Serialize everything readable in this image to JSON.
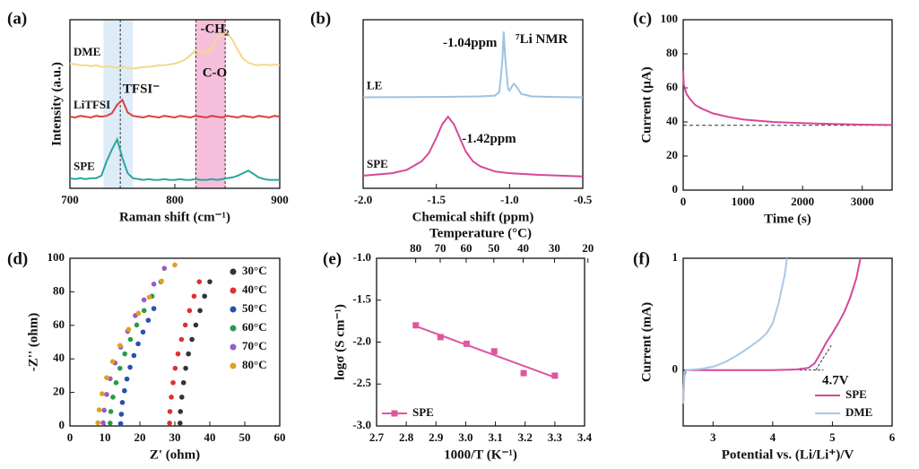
{
  "chart_data": [
    {
      "panel": "(a)",
      "type": "line",
      "xlabel": "Raman shift (cm⁻¹)",
      "ylabel": "Intensity (a.u.)",
      "xlim": [
        700,
        900
      ],
      "ylim": [
        0,
        10
      ],
      "xticks": [
        700,
        800,
        900
      ],
      "yticks": [],
      "legend": "inline",
      "x": [
        700,
        705,
        710,
        715,
        720,
        725,
        730,
        735,
        740,
        745,
        750,
        755,
        760,
        765,
        770,
        775,
        780,
        785,
        790,
        795,
        800,
        805,
        810,
        815,
        820,
        825,
        830,
        835,
        840,
        845,
        850,
        855,
        860,
        865,
        870,
        875,
        880,
        885,
        890,
        895,
        900
      ],
      "series": [
        {
          "name": "DME",
          "color": "#f3d98a",
          "values": [
            7.4,
            7.35,
            7.3,
            7.3,
            7.25,
            7.3,
            7.2,
            7.25,
            7.2,
            7.15,
            7.2,
            7.15,
            7.1,
            7.15,
            7.2,
            7.2,
            7.25,
            7.3,
            7.3,
            7.35,
            7.4,
            7.5,
            7.65,
            7.9,
            8.2,
            8.1,
            8.0,
            8.3,
            8.8,
            9.25,
            9.2,
            8.8,
            8.2,
            7.7,
            7.45,
            7.35,
            7.3,
            7.35,
            7.3,
            7.35,
            7.3
          ]
        },
        {
          "name": "LiTFSI",
          "color": "#d9413f",
          "values": [
            4.25,
            4.2,
            4.3,
            4.25,
            4.2,
            4.3,
            4.25,
            4.3,
            4.45,
            4.95,
            5.25,
            4.5,
            4.3,
            4.25,
            4.2,
            4.3,
            4.25,
            4.2,
            4.3,
            4.25,
            4.2,
            4.3,
            4.25,
            4.2,
            4.3,
            4.25,
            4.2,
            4.3,
            4.25,
            4.2,
            4.3,
            4.25,
            4.2,
            4.3,
            4.25,
            4.2,
            4.3,
            4.25,
            4.2,
            4.3,
            4.25
          ]
        },
        {
          "name": "SPE",
          "color": "#2aa5a0",
          "values": [
            0.6,
            0.55,
            0.6,
            0.55,
            0.6,
            0.6,
            0.75,
            1.6,
            2.3,
            2.9,
            1.8,
            0.9,
            0.6,
            0.55,
            0.5,
            0.55,
            0.5,
            0.5,
            0.55,
            0.5,
            0.5,
            0.55,
            0.5,
            0.5,
            0.55,
            0.5,
            0.5,
            0.55,
            0.5,
            0.55,
            0.6,
            0.65,
            0.75,
            0.9,
            1.05,
            0.85,
            0.65,
            0.55,
            0.5,
            0.5,
            0.5
          ]
        }
      ],
      "highlight_ranges": [
        {
          "from": 732,
          "to": 760,
          "color": "#d3e5f5"
        },
        {
          "from": 820,
          "to": 848,
          "color": "#f2a9cf"
        }
      ],
      "reference_lines": [
        748,
        820,
        848
      ],
      "annotations": [
        {
          "text": "TFSI⁻",
          "x": 768,
          "y": 5.85
        },
        {
          "text": "-CH₂",
          "x": 838,
          "y": 9.4
        },
        {
          "text": "C-O",
          "x": 838,
          "y": 6.8
        }
      ]
    },
    {
      "panel": "(b)",
      "type": "line",
      "xlabel": "Chemical shift (ppm)",
      "xlim": [
        -2,
        -0.5
      ],
      "ylim": [
        0,
        10
      ],
      "xticks": [
        {
          "value": -2,
          "label": "-2.0"
        },
        -1.5,
        {
          "value": -1,
          "label": "-1.0"
        },
        -0.5
      ],
      "yticks": [],
      "legend": "inline",
      "series": [
        {
          "name": "LE",
          "color": "#9ec3e0",
          "x": [
            -2.0,
            -1.5,
            -1.2,
            -1.1,
            -1.07,
            -1.05,
            -1.04,
            -1.03,
            -1.01,
            -1.0,
            -0.98,
            -0.97,
            -0.95,
            -0.92,
            -0.85,
            -0.7,
            -0.5
          ],
          "values": [
            5.4,
            5.42,
            5.45,
            5.5,
            5.7,
            7.5,
            9.3,
            7.8,
            5.9,
            5.8,
            6.1,
            6.2,
            6.0,
            5.6,
            5.45,
            5.42,
            5.4
          ]
        },
        {
          "name": "SPE",
          "color": "#d6479a",
          "x": [
            -2.0,
            -1.8,
            -1.7,
            -1.6,
            -1.55,
            -1.5,
            -1.46,
            -1.42,
            -1.38,
            -1.34,
            -1.3,
            -1.25,
            -1.2,
            -1.1,
            -1.0,
            -0.8,
            -0.5
          ],
          "values": [
            0.75,
            0.9,
            1.1,
            1.6,
            2.1,
            3.0,
            3.8,
            4.25,
            3.8,
            3.0,
            2.2,
            1.6,
            1.3,
            1.0,
            0.9,
            0.8,
            0.7
          ]
        }
      ],
      "annotations": [
        {
          "text": "-1.04ppm",
          "x": -1.27,
          "y": 8.6
        },
        {
          "text": "⁷Li NMR",
          "x": -0.78,
          "y": 8.8
        },
        {
          "text": "-1.42ppm",
          "x": -1.14,
          "y": 2.9
        }
      ]
    },
    {
      "panel": "(c)",
      "type": "line",
      "xlabel": "Time (s)",
      "ylabel": "Current (μA)",
      "xlim": [
        0,
        3500
      ],
      "ylim": [
        0,
        100
      ],
      "xticks": [
        0,
        1000,
        2000,
        3000
      ],
      "yticks": [
        0,
        20,
        40,
        60,
        80,
        100
      ],
      "x": [
        0,
        10,
        50,
        100,
        200,
        300,
        500,
        750,
        1000,
        1500,
        2000,
        2500,
        3000,
        3500
      ],
      "series": [
        {
          "color": "#d6479a",
          "values": [
            70,
            62,
            57,
            54,
            50,
            48,
            45,
            43,
            41.5,
            40,
            39.3,
            38.8,
            38.4,
            38.2
          ]
        }
      ],
      "hlines": [
        38
      ]
    },
    {
      "panel": "(d)",
      "type": "scatter",
      "xlabel": "Z' (ohm)",
      "ylabel": "-Z'' (ohm)",
      "xlim": [
        0,
        60
      ],
      "ylim": [
        0,
        100
      ],
      "xticks": [
        0,
        10,
        20,
        30,
        40,
        50,
        60
      ],
      "yticks": [
        0,
        20,
        40,
        60,
        80,
        100
      ],
      "legend": "upper right",
      "series": [
        {
          "name": "30°C",
          "color": "#333333",
          "x": [
            31.5,
            31.6,
            32.0,
            32.5,
            33.1,
            33.9,
            34.9,
            36.0,
            37.2,
            38.5,
            40.0
          ],
          "values": [
            1.7,
            8.6,
            17.2,
            25.8,
            34.4,
            43,
            51.6,
            60.2,
            68.8,
            77.4,
            86
          ]
        },
        {
          "name": "40°C",
          "color": "#e03030",
          "x": [
            28.5,
            28.6,
            29.0,
            29.5,
            30.1,
            30.9,
            31.9,
            33.0,
            34.2,
            35.5,
            37.0
          ],
          "values": [
            1.7,
            8.6,
            17.2,
            25.8,
            34.4,
            43,
            51.6,
            60.2,
            68.8,
            77.4,
            86
          ]
        },
        {
          "name": "50°C",
          "color": "#2850b0",
          "x": [
            14.5,
            14.7,
            15.0,
            15.6,
            16.3,
            17.2,
            18.3,
            19.5,
            20.9,
            22.4,
            24.0
          ],
          "values": [
            1.4,
            7,
            14,
            21,
            28,
            35,
            42,
            49,
            56,
            63,
            70
          ]
        },
        {
          "name": "60°C",
          "color": "#2a9a4a",
          "x": [
            11.5,
            11.7,
            12.3,
            13.2,
            14.3,
            15.7,
            17.3,
            19.1,
            21.2,
            23.5,
            26.0
          ],
          "values": [
            1.7,
            8.6,
            17.2,
            25.8,
            34.4,
            43,
            51.6,
            60.2,
            68.8,
            77.4,
            86
          ]
        },
        {
          "name": "70°C",
          "color": "#9a5ac8",
          "x": [
            9.5,
            9.8,
            10.5,
            11.5,
            12.9,
            14.5,
            16.5,
            18.7,
            21.2,
            24.0,
            27.0
          ],
          "values": [
            1.9,
            9.4,
            18.8,
            28.2,
            37.6,
            47,
            56.4,
            65.8,
            75.2,
            84.6,
            94
          ]
        },
        {
          "name": "80°C",
          "color": "#e0a020",
          "x": [
            8.0,
            8.35,
            9.2,
            10.5,
            12.2,
            14.3,
            16.8,
            19.6,
            22.7,
            26.2,
            30.0
          ],
          "values": [
            1.9,
            9.6,
            19.2,
            28.8,
            38.4,
            48,
            57.6,
            67.2,
            76.8,
            86.4,
            96
          ]
        }
      ]
    },
    {
      "panel": "(e)",
      "type": "scatter",
      "marker": "square",
      "xlabel": "1000/T (K⁻¹)",
      "ylabel": "logσ (S cm⁻¹)",
      "x2label": "Temperature (°C)",
      "xlim": [
        2.7,
        3.4
      ],
      "ylim": [
        -3,
        -1
      ],
      "xticks": [
        2.7,
        2.8,
        2.9,
        {
          "value": 3,
          "label": "3.0"
        },
        3.1,
        3.2,
        3.3,
        3.4
      ],
      "yticks": [
        {
          "value": -3,
          "label": "-3.0"
        },
        -2.5,
        {
          "value": -2,
          "label": "-2.0"
        },
        -1.5,
        {
          "value": -1,
          "label": "-1.0"
        }
      ],
      "x2ticks": [
        80,
        70,
        60,
        50,
        40,
        30,
        20
      ],
      "x2scale": "inverse-kelvin",
      "legend": "lower left",
      "series": [
        {
          "name": "SPE",
          "color": "#e0559f",
          "x": [
            2.832,
            2.915,
            3.003,
            3.096,
            3.195,
            3.3
          ],
          "values": [
            -1.8,
            -1.94,
            -2.02,
            -2.11,
            -2.37,
            -2.4
          ]
        }
      ],
      "trendline": {
        "x": [
          2.832,
          3.3
        ],
        "y": [
          -1.81,
          -2.42
        ]
      }
    },
    {
      "panel": "(f)",
      "type": "line",
      "xlabel": "Potential vs. (Li/Li⁺)/V",
      "ylabel": "Current (mA)",
      "xlim": [
        2.5,
        6
      ],
      "ylim": [
        -0.5,
        1
      ],
      "xticks": [
        3,
        4,
        5,
        6
      ],
      "yticks": [
        0,
        1
      ],
      "legend": "lower right",
      "series": [
        {
          "name": "SPE",
          "color": "#d6479a",
          "x": [
            2.5,
            2.52,
            2.55,
            2.6,
            3,
            3.5,
            4,
            4.4,
            4.6,
            4.7,
            4.8,
            4.9,
            5.0,
            5.1,
            5.2,
            5.3,
            5.4,
            5.47
          ],
          "values": [
            -0.3,
            -0.05,
            0.0,
            0.0,
            0.0,
            0.0,
            0.0,
            0.005,
            0.02,
            0.06,
            0.15,
            0.25,
            0.33,
            0.42,
            0.52,
            0.65,
            0.82,
            1.0
          ]
        },
        {
          "name": "DME",
          "color": "#a8c8e6",
          "x": [
            2.5,
            2.52,
            2.55,
            2.8,
            3.0,
            3.2,
            3.4,
            3.6,
            3.8,
            3.9,
            4.0,
            4.1,
            4.2,
            4.24
          ],
          "values": [
            -0.3,
            -0.02,
            0.0,
            0.01,
            0.03,
            0.07,
            0.13,
            0.2,
            0.28,
            0.33,
            0.42,
            0.6,
            0.85,
            1.0
          ]
        }
      ],
      "guide_lines": [
        {
          "x": [
            4.45,
            4.85
          ],
          "y": [
            0,
            0
          ]
        },
        {
          "x": [
            4.72,
            4.98
          ],
          "y": [
            0,
            0.22
          ]
        }
      ],
      "annotations": [
        {
          "text": "4.7V",
          "x": 5.05,
          "y": -0.1
        }
      ]
    }
  ]
}
